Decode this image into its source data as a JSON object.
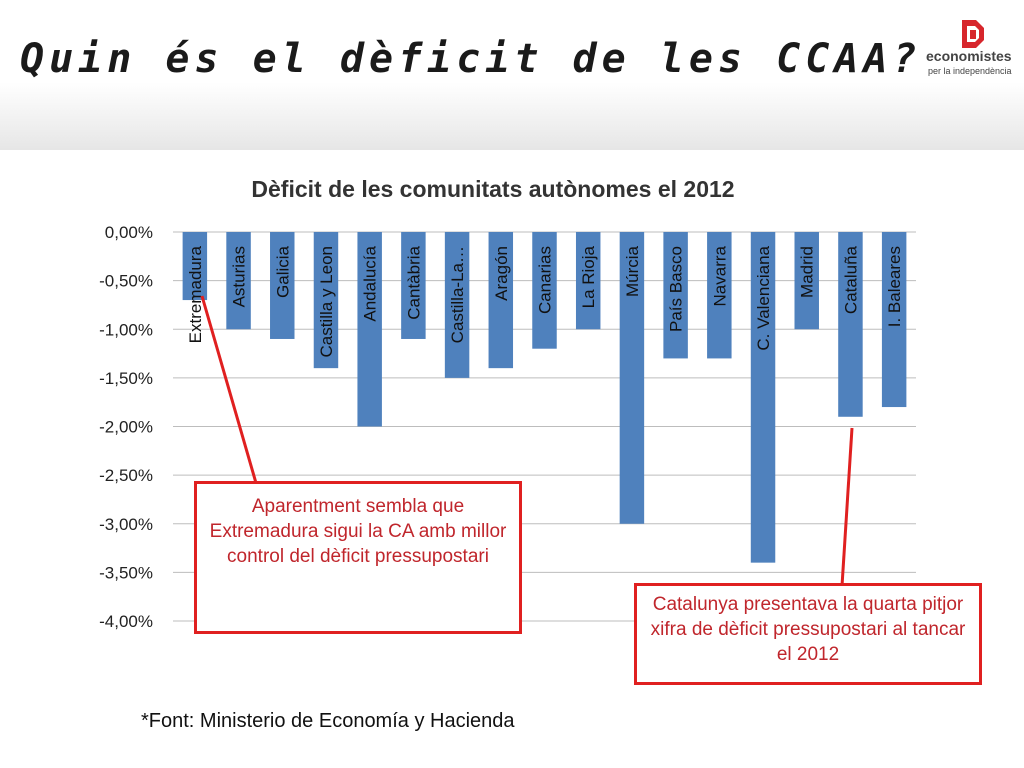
{
  "slide": {
    "title": "Quin és el dèficit de les CCAA?",
    "logo": {
      "name": "economistes",
      "tagline": "per la independència"
    },
    "source_note": "*Font: Ministerio de Economía y Hacienda"
  },
  "callouts": {
    "left": "Aparentment sembla que Extremadura sigui la CA amb millor control del dèficit pressupostari",
    "right": "Catalunya presentava la quarta pitjor xifra de dèficit pressupostari al tancar el 2012"
  },
  "colors": {
    "bar": "#4f81bd",
    "callout_border": "#e02020",
    "callout_text": "#c0262c",
    "logo": "#d7262c"
  },
  "chart_data": {
    "type": "bar",
    "title": "Dèficit de les comunitats autònomes el 2012",
    "categories": [
      "Extremadura",
      "Asturias",
      "Galicia",
      "Castilla y Leon",
      "Andalucía",
      "Cantàbria",
      "Castilla-La…",
      "Aragón",
      "Canarias",
      "La Rioja",
      "Múrcia",
      "País Basco",
      "Navarra",
      "C. Valenciana",
      "Madrid",
      "Cataluña",
      "I. Baleares"
    ],
    "values": [
      -0.7,
      -1.0,
      -1.1,
      -1.4,
      -2.0,
      -1.1,
      -1.5,
      -1.4,
      -1.2,
      -1.0,
      -3.0,
      -1.3,
      -1.3,
      -3.4,
      -1.0,
      -1.9,
      -1.8
    ],
    "unit": "%",
    "ylim": [
      -4.0,
      0.0
    ],
    "yticks": [
      0.0,
      -0.5,
      -1.0,
      -1.5,
      -2.0,
      -2.5,
      -3.0,
      -3.5,
      -4.0
    ],
    "ytick_labels": [
      "0,00%",
      "-0,50%",
      "-1,00%",
      "-1,50%",
      "-2,00%",
      "-2,50%",
      "-3,00%",
      "-3,50%",
      "-4,00%"
    ],
    "grid": true,
    "legend": "none"
  }
}
